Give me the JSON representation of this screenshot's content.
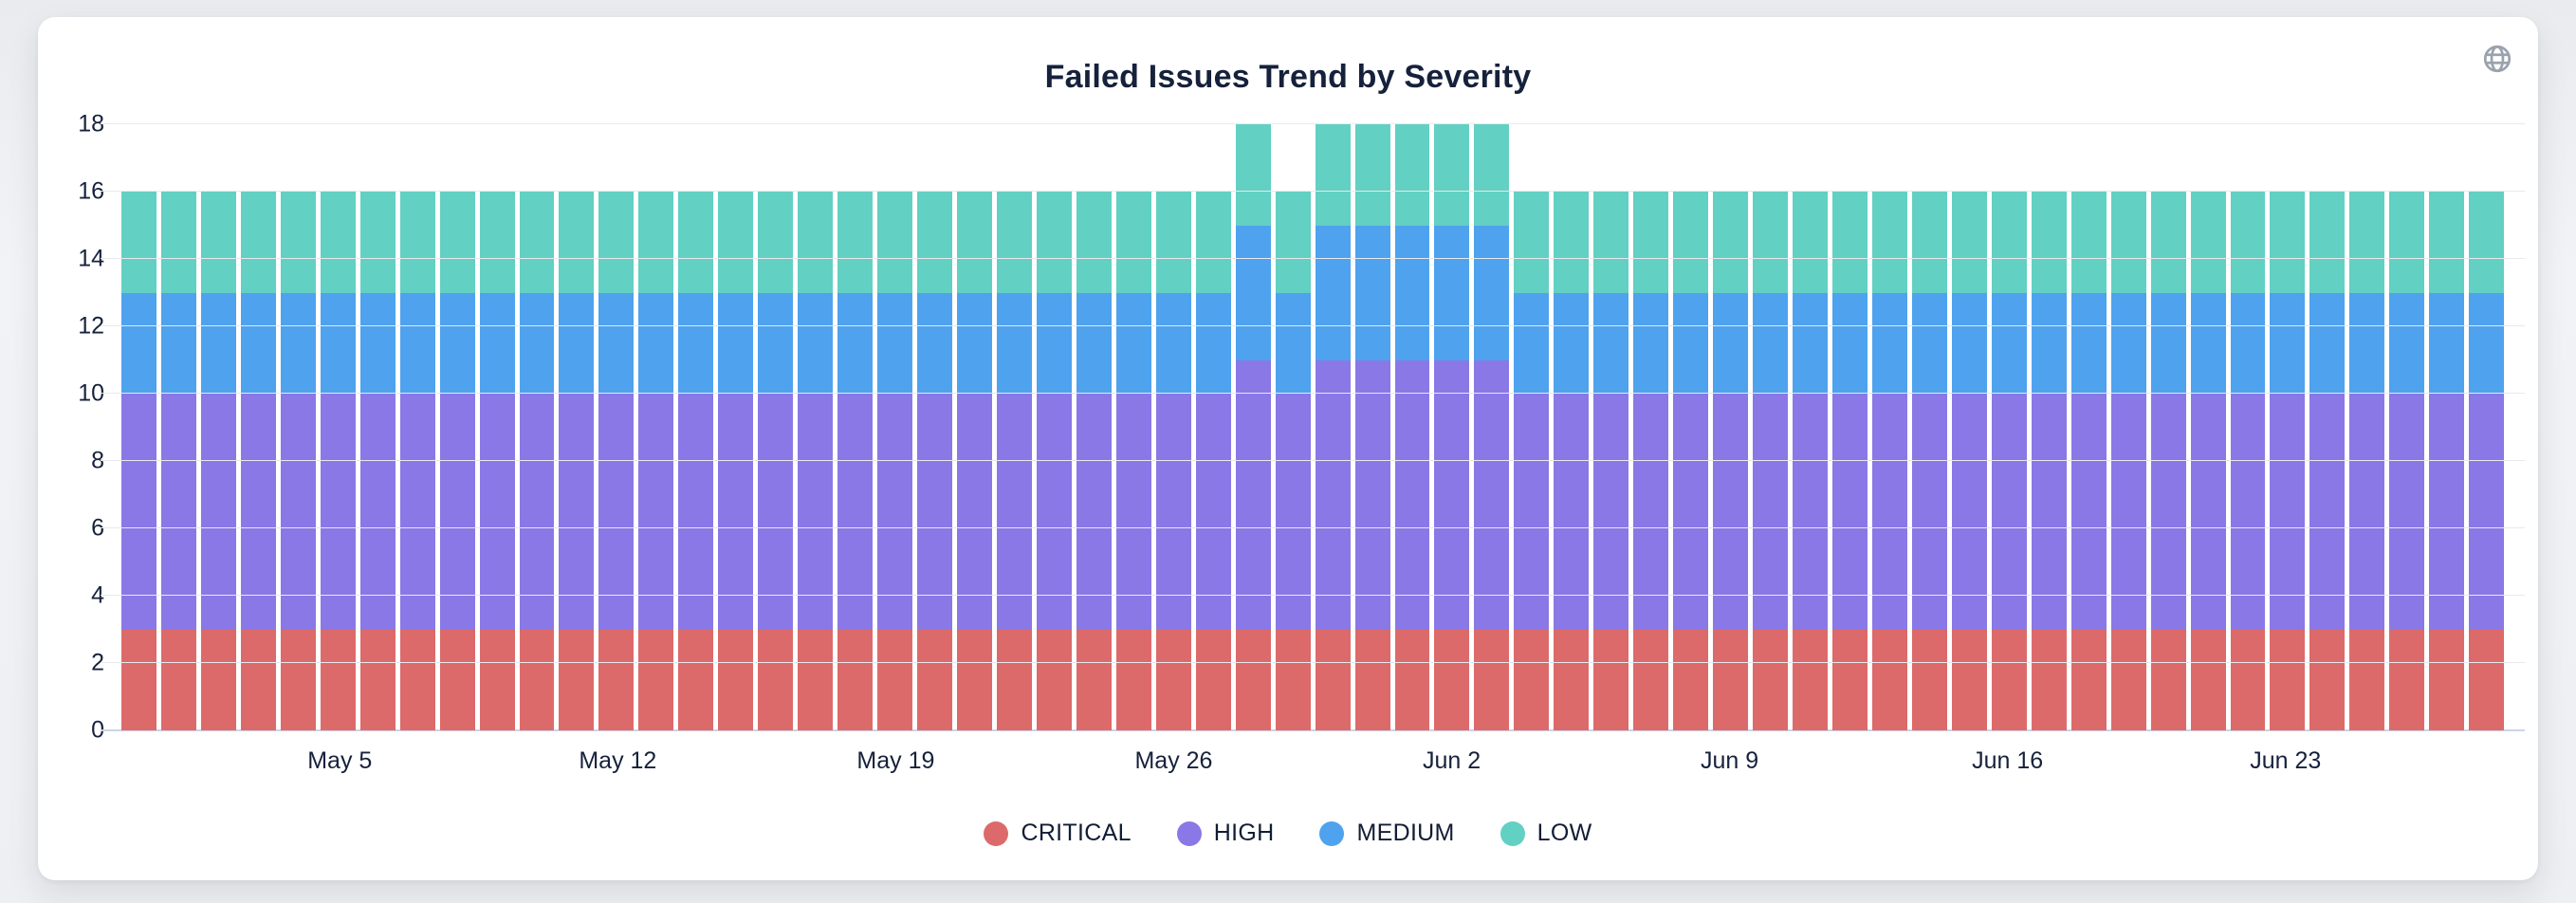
{
  "card": {
    "corner_icon": "globe",
    "icon_color": "#9aa2ad"
  },
  "chart_data": {
    "type": "bar",
    "variant": "stacked",
    "title": "Failed Issues Trend by Severity",
    "title_color": "#16213b",
    "xlabel": "",
    "ylabel": "",
    "ylim": [
      0,
      18
    ],
    "yticks": [
      0,
      2,
      4,
      6,
      8,
      10,
      12,
      14,
      16,
      18
    ],
    "grid": "horizontal",
    "legend_position": "bottom",
    "x": [
      "Apr 30",
      "May 1",
      "May 2",
      "May 3",
      "May 4",
      "May 5",
      "May 6",
      "May 7",
      "May 8",
      "May 9",
      "May 10",
      "May 11",
      "May 12",
      "May 13",
      "May 14",
      "May 15",
      "May 16",
      "May 17",
      "May 18",
      "May 19",
      "May 20",
      "May 21",
      "May 22",
      "May 23",
      "May 24",
      "May 25",
      "May 26",
      "May 27",
      "May 28",
      "May 29",
      "May 30",
      "May 31",
      "Jun 1",
      "Jun 2",
      "Jun 3",
      "Jun 4",
      "Jun 5",
      "Jun 6",
      "Jun 7",
      "Jun 8",
      "Jun 9",
      "Jun 10",
      "Jun 11",
      "Jun 12",
      "Jun 13",
      "Jun 14",
      "Jun 15",
      "Jun 16",
      "Jun 17",
      "Jun 18",
      "Jun 19",
      "Jun 20",
      "Jun 21",
      "Jun 22",
      "Jun 23",
      "Jun 24",
      "Jun 25",
      "Jun 26",
      "Jun 27",
      "Jun 28"
    ],
    "xticks": [
      {
        "label": "May 5",
        "index": 5
      },
      {
        "label": "May 12",
        "index": 12
      },
      {
        "label": "May 19",
        "index": 19
      },
      {
        "label": "May 26",
        "index": 26
      },
      {
        "label": "Jun 2",
        "index": 33
      },
      {
        "label": "Jun 9",
        "index": 40
      },
      {
        "label": "Jun 16",
        "index": 47
      },
      {
        "label": "Jun 23",
        "index": 54
      }
    ],
    "series": [
      {
        "name": "CRITICAL",
        "color": "#dd6a6a",
        "values": [
          3,
          3,
          3,
          3,
          3,
          3,
          3,
          3,
          3,
          3,
          3,
          3,
          3,
          3,
          3,
          3,
          3,
          3,
          3,
          3,
          3,
          3,
          3,
          3,
          3,
          3,
          3,
          3,
          3,
          3,
          3,
          3,
          3,
          3,
          3,
          3,
          3,
          3,
          3,
          3,
          3,
          3,
          3,
          3,
          3,
          3,
          3,
          3,
          3,
          3,
          3,
          3,
          3,
          3,
          3,
          3,
          3,
          3,
          3,
          3
        ]
      },
      {
        "name": "HIGH",
        "color": "#8a78e6",
        "values": [
          7,
          7,
          7,
          7,
          7,
          7,
          7,
          7,
          7,
          7,
          7,
          7,
          7,
          7,
          7,
          7,
          7,
          7,
          7,
          7,
          7,
          7,
          7,
          7,
          7,
          7,
          7,
          7,
          8,
          7,
          8,
          8,
          8,
          8,
          8,
          7,
          7,
          7,
          7,
          7,
          7,
          7,
          7,
          7,
          7,
          7,
          7,
          7,
          7,
          7,
          7,
          7,
          7,
          7,
          7,
          7,
          7,
          7,
          7,
          7
        ]
      },
      {
        "name": "MEDIUM",
        "color": "#4fa2ee",
        "values": [
          3,
          3,
          3,
          3,
          3,
          3,
          3,
          3,
          3,
          3,
          3,
          3,
          3,
          3,
          3,
          3,
          3,
          3,
          3,
          3,
          3,
          3,
          3,
          3,
          3,
          3,
          3,
          3,
          4,
          3,
          4,
          4,
          4,
          4,
          4,
          3,
          3,
          3,
          3,
          3,
          3,
          3,
          3,
          3,
          3,
          3,
          3,
          3,
          3,
          3,
          3,
          3,
          3,
          3,
          3,
          3,
          3,
          3,
          3,
          3
        ]
      },
      {
        "name": "LOW",
        "color": "#62d0c2",
        "values": [
          3,
          3,
          3,
          3,
          3,
          3,
          3,
          3,
          3,
          3,
          3,
          3,
          3,
          3,
          3,
          3,
          3,
          3,
          3,
          3,
          3,
          3,
          3,
          3,
          3,
          3,
          3,
          3,
          3,
          3,
          3,
          3,
          3,
          3,
          3,
          3,
          3,
          3,
          3,
          3,
          3,
          3,
          3,
          3,
          3,
          3,
          3,
          3,
          3,
          3,
          3,
          3,
          3,
          3,
          3,
          3,
          3,
          3,
          3,
          3
        ]
      }
    ]
  }
}
